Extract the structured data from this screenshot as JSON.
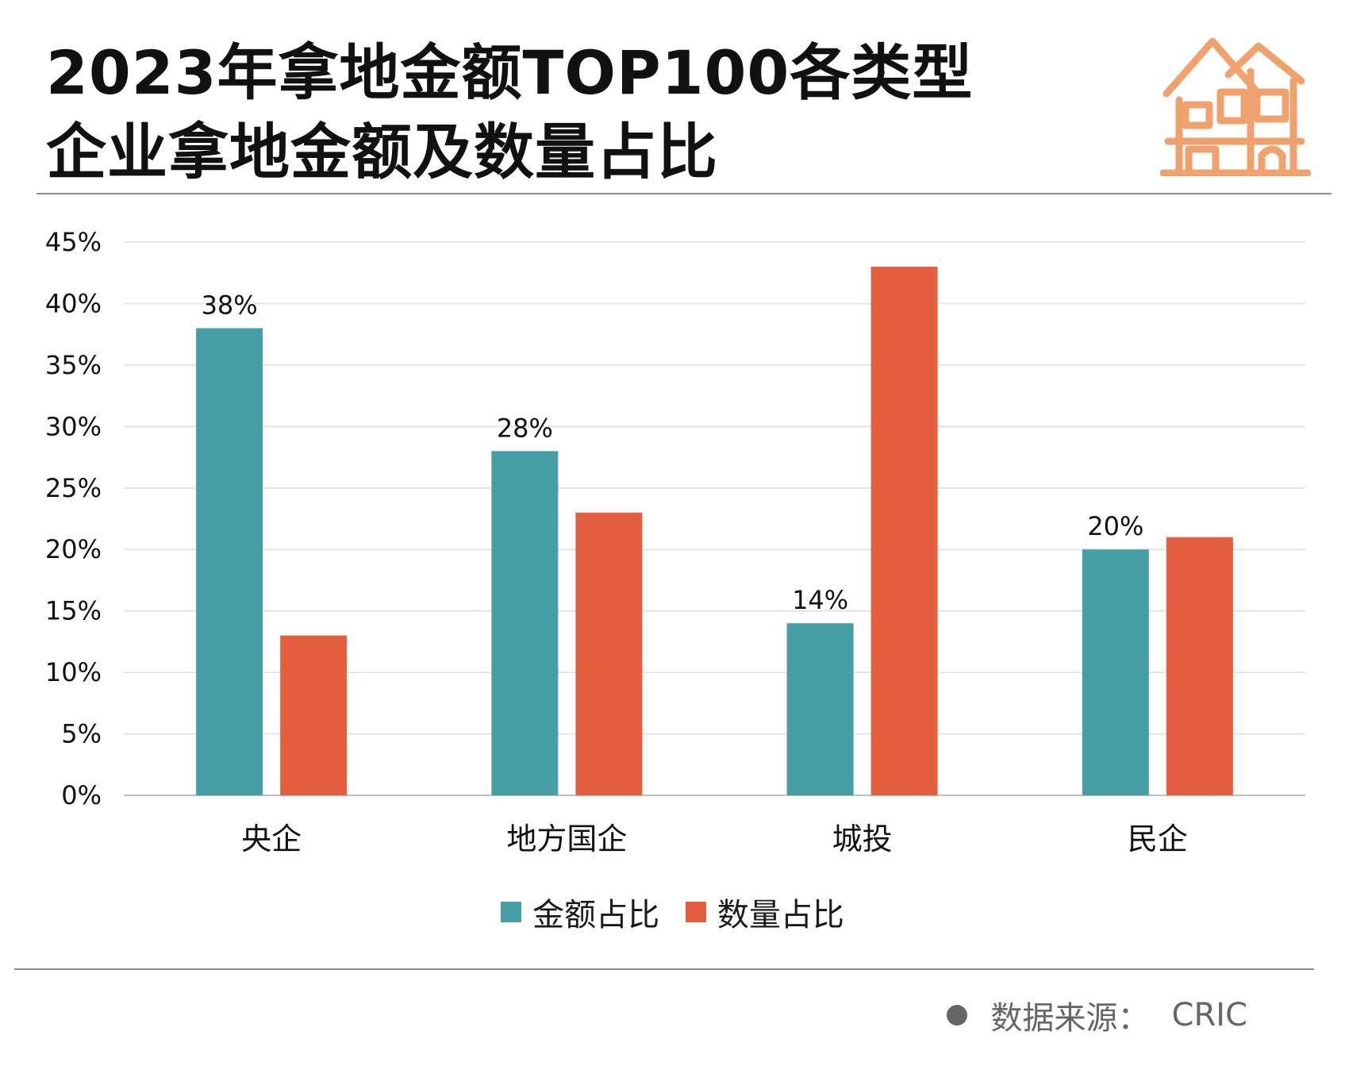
{
  "header": {
    "title_line1": "2023年拿地金额TOP100各类型",
    "title_line2": "企业拿地金额及数量占比",
    "icon": "house-icon"
  },
  "footer": {
    "source_label": "数据来源：",
    "source_value": "CRIC"
  },
  "colors": {
    "amount": "#469fa5",
    "count": "#e35f40",
    "icon": "#f0a26e",
    "grid": "#e4e4e4",
    "axis": "#bfbfbf"
  },
  "chart_data": {
    "type": "bar",
    "title": "",
    "xlabel": "",
    "ylabel": "",
    "categories": [
      "央企",
      "地方国企",
      "城投",
      "民企"
    ],
    "series": [
      {
        "name": "金额占比",
        "values": [
          38,
          28,
          14,
          20
        ]
      },
      {
        "name": "数量占比",
        "values": [
          13,
          23,
          43,
          21
        ]
      }
    ],
    "data_labels": [
      "38%",
      "28%",
      "14%",
      "20%"
    ],
    "ylim": [
      0,
      45
    ],
    "y_ticks": [
      "0%",
      "5%",
      "10%",
      "15%",
      "20%",
      "25%",
      "30%",
      "35%",
      "40%",
      "45%"
    ],
    "grid": true,
    "legend_position": "bottom"
  }
}
